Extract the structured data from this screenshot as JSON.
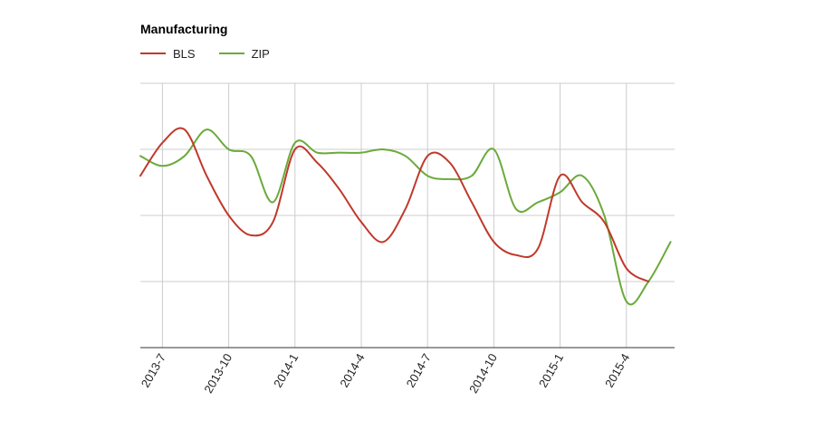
{
  "chart_data": {
    "type": "line",
    "title": "Manufacturing",
    "xlabel": "",
    "ylabel": "",
    "x_ticks": [
      "2013-7",
      "2013-10",
      "2014-1",
      "2014-4",
      "2014-7",
      "2014-10",
      "2015-1",
      "2015-4"
    ],
    "y_ticks": [],
    "ylim": [
      0,
      4
    ],
    "grid": true,
    "legend_position": "top-left",
    "series": [
      {
        "name": "BLS",
        "color": "#c0392b",
        "points": [
          [
            "2013-06",
            2.6
          ],
          [
            "2013-07",
            3.1
          ],
          [
            "2013-08",
            3.3
          ],
          [
            "2013-09",
            2.6
          ],
          [
            "2013-10",
            2.0
          ],
          [
            "2013-11",
            1.7
          ],
          [
            "2013-12",
            1.9
          ],
          [
            "2014-01",
            3.0
          ],
          [
            "2014-02",
            2.8
          ],
          [
            "2014-03",
            2.4
          ],
          [
            "2014-04",
            1.9
          ],
          [
            "2014-05",
            1.6
          ],
          [
            "2014-06",
            2.1
          ],
          [
            "2014-07",
            2.9
          ],
          [
            "2014-08",
            2.8
          ],
          [
            "2014-09",
            2.2
          ],
          [
            "2014-10",
            1.6
          ],
          [
            "2014-11",
            1.4
          ],
          [
            "2014-12",
            1.5
          ],
          [
            "2015-01",
            2.6
          ],
          [
            "2015-02",
            2.2
          ],
          [
            "2015-03",
            1.9
          ],
          [
            "2015-04",
            1.2
          ],
          [
            "2015-05",
            1.0
          ]
        ]
      },
      {
        "name": "ZIP",
        "color": "#6aaa3a",
        "points": [
          [
            "2013-06",
            2.9
          ],
          [
            "2013-07",
            2.75
          ],
          [
            "2013-08",
            2.9
          ],
          [
            "2013-09",
            3.3
          ],
          [
            "2013-10",
            3.0
          ],
          [
            "2013-11",
            2.9
          ],
          [
            "2013-12",
            2.2
          ],
          [
            "2014-01",
            3.1
          ],
          [
            "2014-02",
            2.95
          ],
          [
            "2014-03",
            2.95
          ],
          [
            "2014-04",
            2.95
          ],
          [
            "2014-05",
            3.0
          ],
          [
            "2014-06",
            2.9
          ],
          [
            "2014-07",
            2.6
          ],
          [
            "2014-08",
            2.55
          ],
          [
            "2014-09",
            2.6
          ],
          [
            "2014-10",
            3.0
          ],
          [
            "2014-11",
            2.1
          ],
          [
            "2014-12",
            2.2
          ],
          [
            "2015-01",
            2.35
          ],
          [
            "2015-02",
            2.6
          ],
          [
            "2015-03",
            2.0
          ],
          [
            "2015-04",
            0.7
          ],
          [
            "2015-05",
            1.0
          ],
          [
            "2015-06",
            1.6
          ]
        ]
      }
    ]
  }
}
